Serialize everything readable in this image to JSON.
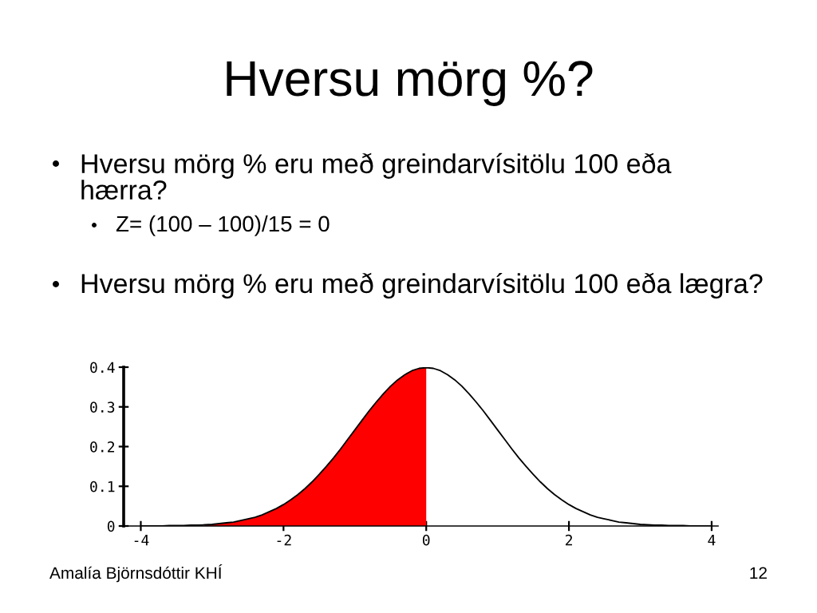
{
  "chart_data": {
    "type": "line",
    "title": "Hversu mörg %?",
    "annotations": [
      "Hversu mörg % eru með greindarvísitölu 100 eða\nhærra?",
      "Z= (100 – 100)/15 = 0",
      "Hversu mörg % eru með greindarvísitölu 100 eða lægra?",
      "Amalía Björnsdóttir KHÍ",
      "12"
    ],
    "x": [
      -4.0,
      -3.9,
      -3.8,
      -3.7,
      -3.6,
      -3.5,
      -3.4,
      -3.3,
      -3.2,
      -3.1,
      -3.0,
      -2.9,
      -2.8,
      -2.7,
      -2.6,
      -2.5,
      -2.4,
      -2.3,
      -2.2,
      -2.1,
      -2.0,
      -1.9,
      -1.8,
      -1.7,
      -1.6,
      -1.5,
      -1.4,
      -1.3,
      -1.2,
      -1.1,
      -1.0,
      -0.9,
      -0.8,
      -0.7,
      -0.6,
      -0.5,
      -0.4,
      -0.3,
      -0.2,
      -0.1,
      0.0,
      0.1,
      0.2,
      0.3,
      0.4,
      0.5,
      0.6,
      0.7,
      0.8,
      0.9,
      1.0,
      1.1,
      1.2,
      1.3,
      1.4,
      1.5,
      1.6,
      1.7,
      1.8,
      1.9,
      2.0,
      2.1,
      2.2,
      2.3,
      2.4,
      2.5,
      2.6,
      2.7,
      2.8,
      2.9,
      3.0,
      3.1,
      3.2,
      3.3,
      3.4,
      3.5,
      3.6,
      3.7,
      3.8,
      3.9,
      4.0
    ],
    "series": [
      {
        "type": "area",
        "color": "#ff0000",
        "x": [
          -3.1,
          -3.0,
          -2.9,
          -2.8,
          -2.7,
          -2.6,
          -2.5,
          -2.4,
          -2.3,
          -2.2,
          -2.1,
          -2.0,
          -1.9,
          -1.8,
          -1.7,
          -1.6,
          -1.5,
          -1.4,
          -1.3,
          -1.2,
          -1.1,
          -1.0,
          -0.9,
          -0.8,
          -0.7,
          -0.6,
          -0.5,
          -0.4,
          -0.3,
          -0.2,
          -0.1,
          0.0
        ],
        "values": [
          0.003,
          0.004,
          0.006,
          0.008,
          0.01,
          0.014,
          0.018,
          0.022,
          0.028,
          0.036,
          0.044,
          0.054,
          0.066,
          0.079,
          0.094,
          0.111,
          0.13,
          0.15,
          0.171,
          0.194,
          0.218,
          0.242,
          0.266,
          0.29,
          0.312,
          0.333,
          0.352,
          0.368,
          0.381,
          0.391,
          0.397,
          0.399
        ]
      },
      {
        "color": "#000000",
        "values": [
          0.0,
          0.0,
          0.0,
          0.0,
          0.001,
          0.001,
          0.001,
          0.002,
          0.002,
          0.003,
          0.004,
          0.006,
          0.008,
          0.01,
          0.014,
          0.018,
          0.022,
          0.028,
          0.036,
          0.044,
          0.054,
          0.066,
          0.079,
          0.094,
          0.111,
          0.13,
          0.15,
          0.171,
          0.194,
          0.218,
          0.242,
          0.266,
          0.29,
          0.312,
          0.333,
          0.352,
          0.368,
          0.381,
          0.391,
          0.397,
          0.399,
          0.397,
          0.391,
          0.381,
          0.368,
          0.352,
          0.333,
          0.312,
          0.29,
          0.266,
          0.242,
          0.218,
          0.194,
          0.171,
          0.15,
          0.13,
          0.111,
          0.094,
          0.079,
          0.066,
          0.054,
          0.044,
          0.036,
          0.028,
          0.022,
          0.018,
          0.014,
          0.01,
          0.008,
          0.006,
          0.004,
          0.003,
          0.002,
          0.002,
          0.001,
          0.001,
          0.001,
          0.0,
          0.0,
          0.0,
          0.0
        ]
      }
    ],
    "xlim": [
      -4.24,
      4.09
    ],
    "ylim": [
      0,
      0.4
    ],
    "xticks": [
      -4,
      -2,
      0,
      2,
      4
    ],
    "yticks": [
      0,
      0.1,
      0.2,
      0.3,
      0.4
    ]
  }
}
